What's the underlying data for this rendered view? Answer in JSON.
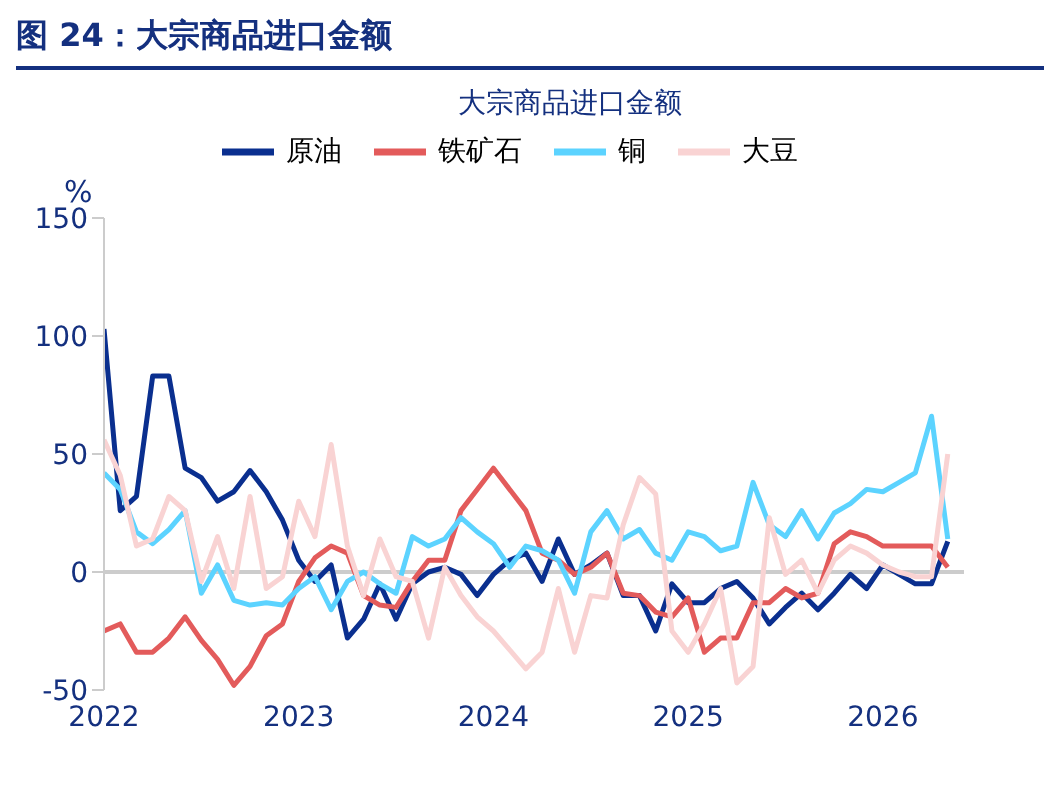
{
  "chart_data": {
    "type": "line",
    "title": "图 24：大宗商品进口金额",
    "subtitle": "大宗商品进口金额",
    "ylabel": "%",
    "x": [
      "2022-01",
      "2022-02",
      "2022-03",
      "2022-04",
      "2022-05",
      "2022-06",
      "2022-07",
      "2022-08",
      "2022-09",
      "2022-10",
      "2022-11",
      "2022-12",
      "2023-01",
      "2023-02",
      "2023-03",
      "2023-04",
      "2023-05",
      "2023-06",
      "2023-07",
      "2023-08",
      "2023-09",
      "2023-10",
      "2023-11",
      "2023-12",
      "2024-01",
      "2024-02",
      "2024-03",
      "2024-04",
      "2024-05",
      "2024-06",
      "2024-07",
      "2024-08",
      "2024-09",
      "2024-10",
      "2024-11",
      "2024-12",
      "2025-01",
      "2025-02",
      "2025-03",
      "2025-04",
      "2025-05",
      "2025-06",
      "2025-07",
      "2025-08",
      "2025-09",
      "2025-10",
      "2025-11",
      "2025-12",
      "2026-01",
      "2026-02",
      "2026-03",
      "2026-04",
      "2026-05"
    ],
    "series": [
      {
        "name": "原油",
        "color": "#0a2f8f",
        "values": [
          103,
          26,
          32,
          83,
          83,
          44,
          40,
          30,
          34,
          43,
          34,
          22,
          5,
          -4,
          3,
          -28,
          -20,
          -5,
          -20,
          -5,
          0,
          2,
          -1,
          -10,
          -1,
          5,
          8,
          -4,
          14,
          -1,
          3,
          8,
          -10,
          -10,
          -25,
          -5,
          -13,
          -13,
          -7,
          -4,
          -11,
          -22,
          -15,
          -9,
          -16,
          -9,
          -1,
          -7,
          3,
          -1,
          -5,
          -5,
          13
        ]
      },
      {
        "name": "铁矿石",
        "color": "#e35b5b",
        "values": [
          -25,
          -22,
          -34,
          -34,
          -28,
          -19,
          -29,
          -37,
          -48,
          -40,
          -27,
          -22,
          -4,
          6,
          11,
          8,
          -10,
          -14,
          -15,
          -4,
          5,
          5,
          26,
          35,
          44,
          35,
          26,
          8,
          5,
          -1,
          2,
          8,
          -9,
          -10,
          -17,
          -19,
          -11,
          -34,
          -28,
          -28,
          -13,
          -13,
          -7,
          -11,
          -9,
          12,
          17,
          15,
          11,
          11,
          11,
          11,
          2
        ]
      },
      {
        "name": "铜",
        "color": "#5cd3ff",
        "values": [
          42,
          35,
          17,
          12,
          18,
          26,
          -9,
          3,
          -12,
          -14,
          -13,
          -14,
          -7,
          -2,
          -16,
          -4,
          0,
          -5,
          -9,
          15,
          11,
          14,
          23,
          17,
          12,
          2,
          11,
          9,
          5,
          -9,
          17,
          26,
          14,
          18,
          8,
          5,
          17,
          15,
          9,
          11,
          38,
          20,
          15,
          26,
          14,
          25,
          29,
          35,
          34,
          38,
          42,
          66,
          14
        ]
      },
      {
        "name": "大豆",
        "color": "#f9d3d3",
        "values": [
          56,
          41,
          11,
          14,
          32,
          26,
          -4,
          15,
          -7,
          32,
          -7,
          -2,
          30,
          15,
          54,
          11,
          -10,
          14,
          -2,
          -4,
          -28,
          2,
          -10,
          -19,
          -25,
          -33,
          -41,
          -34,
          -7,
          -34,
          -10,
          -11,
          20,
          40,
          33,
          -25,
          -34,
          -22,
          -7,
          -47,
          -40,
          23,
          -1,
          5,
          -9,
          5,
          11,
          8,
          3,
          0,
          -2,
          -2,
          50
        ]
      }
    ],
    "xlim": [
      "2022-01",
      "2026-06"
    ],
    "xticks": [
      {
        "value": "2022-01",
        "label": "2022"
      },
      {
        "value": "2023-01",
        "label": "2023"
      },
      {
        "value": "2024-01",
        "label": "2024"
      },
      {
        "value": "2025-01",
        "label": "2025"
      },
      {
        "value": "2026-01",
        "label": "2026"
      }
    ],
    "ylim": [
      -50,
      150
    ],
    "yticks": [
      -50,
      0,
      50,
      100,
      150
    ],
    "ref_lines": [
      {
        "axis": "y",
        "value": 0,
        "color": "#cccccc"
      }
    ],
    "grid": false,
    "legend": "top",
    "marker": "none",
    "line_style": "solid"
  }
}
